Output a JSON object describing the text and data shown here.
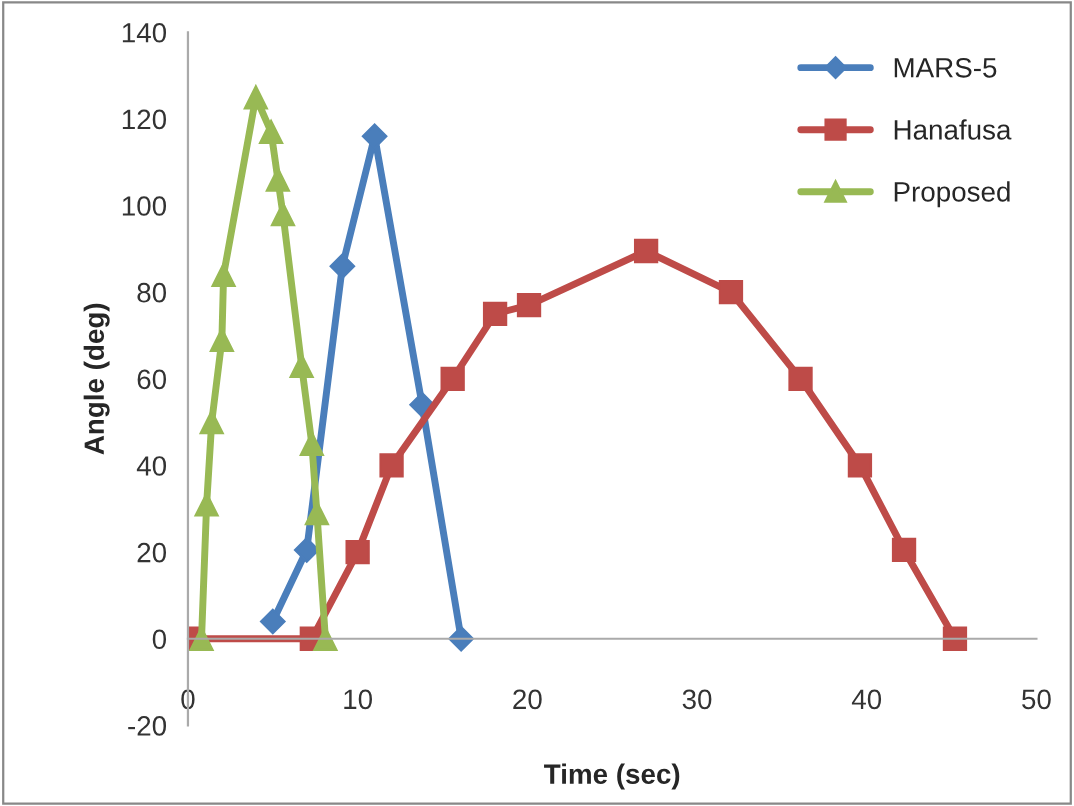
{
  "chart_data": {
    "type": "line",
    "xlabel": "Time (sec)",
    "ylabel": "Angle (deg)",
    "xlim": [
      0,
      50
    ],
    "xticks": [
      0,
      10,
      20,
      30,
      40,
      50
    ],
    "ylim": [
      -20,
      140
    ],
    "yticks": [
      -20,
      0,
      20,
      40,
      60,
      80,
      100,
      120,
      140
    ],
    "grid": false,
    "legend": "top right",
    "line_style": "solid",
    "series": [
      {
        "name": "MARS-5",
        "color": "#4a7ebb",
        "marker": "diamond",
        "x": [
          5.0,
          7.0,
          9.1,
          11.0,
          13.8,
          16.1
        ],
        "values": [
          4,
          20.5,
          86,
          116,
          54,
          0
        ]
      },
      {
        "name": "Hanafusa",
        "color": "#be4b48",
        "marker": "square",
        "x": [
          0,
          7.3,
          10,
          12,
          15.6,
          18.1,
          20.1,
          27,
          32,
          36.1,
          39.6,
          42.2,
          45.2
        ],
        "values": [
          0,
          0,
          20,
          40,
          60,
          75,
          77,
          89.5,
          80,
          60,
          40,
          20.5,
          0
        ]
      },
      {
        "name": "Proposed",
        "color": "#98b954",
        "marker": "triangle",
        "x": [
          0.8,
          1.1,
          1.4,
          2.0,
          2.1,
          4.0,
          4.9,
          5.3,
          5.6,
          6.7,
          7.3,
          7.6,
          8.1
        ],
        "values": [
          0,
          31,
          50,
          69,
          84,
          125,
          117,
          106,
          98,
          63,
          45,
          29,
          0
        ]
      }
    ]
  }
}
